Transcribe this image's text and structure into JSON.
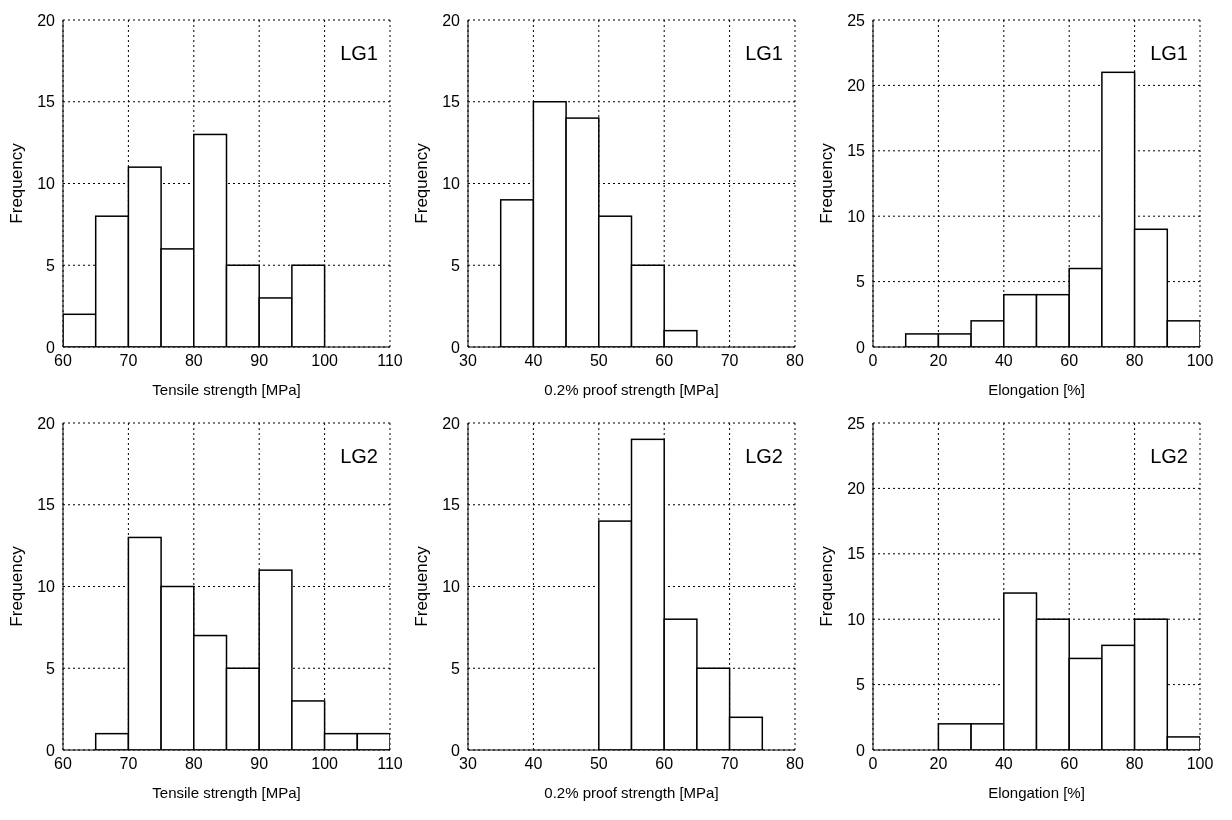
{
  "chart_data": [
    {
      "type": "histogram",
      "bins": [
        60,
        65,
        70,
        75,
        80,
        85,
        90,
        95,
        100
      ],
      "values": [
        2,
        8,
        11,
        6,
        13,
        5,
        3,
        5
      ],
      "color": "#ffffff",
      "xlim": [
        60,
        110
      ],
      "xticks": [
        60,
        70,
        80,
        90,
        100,
        110
      ],
      "ylim": [
        0,
        20
      ],
      "yticks": [
        0,
        5,
        10,
        15,
        20
      ],
      "xlabel": "Tensile strength  [MPa]",
      "ylabel": "Frequency",
      "annotations": [
        "LG1"
      ],
      "grid": true
    },
    {
      "type": "histogram",
      "bins": [
        35,
        40,
        45,
        50,
        55,
        60,
        65
      ],
      "values": [
        9,
        15,
        14,
        8,
        5,
        1
      ],
      "color": "#ffffff",
      "xlim": [
        30,
        80
      ],
      "xticks": [
        30,
        40,
        50,
        60,
        70,
        80
      ],
      "ylim": [
        0,
        20
      ],
      "yticks": [
        0,
        5,
        10,
        15,
        20
      ],
      "xlabel": "0.2% proof strength  [MPa]",
      "ylabel": "Frequency",
      "annotations": [
        "LG1"
      ],
      "grid": true
    },
    {
      "type": "histogram",
      "bins": [
        10,
        20,
        30,
        40,
        50,
        60,
        70,
        80,
        90,
        100
      ],
      "values": [
        1,
        1,
        2,
        4,
        4,
        6,
        21,
        9,
        2
      ],
      "color": "#ffffff",
      "xlim": [
        0,
        100
      ],
      "xticks": [
        0,
        20,
        40,
        60,
        80,
        100
      ],
      "ylim": [
        0,
        25
      ],
      "yticks": [
        0,
        5,
        10,
        15,
        20,
        25
      ],
      "xlabel": "Elongation  [%]",
      "ylabel": "Frequency",
      "annotations": [
        "LG1"
      ],
      "grid": true
    },
    {
      "type": "histogram",
      "bins": [
        65,
        70,
        75,
        80,
        85,
        90,
        95,
        100,
        105,
        110
      ],
      "values": [
        1,
        13,
        10,
        7,
        5,
        11,
        3,
        1,
        1
      ],
      "color": "#ffffff",
      "xlim": [
        60,
        110
      ],
      "xticks": [
        60,
        70,
        80,
        90,
        100,
        110
      ],
      "ylim": [
        0,
        20
      ],
      "yticks": [
        0,
        5,
        10,
        15,
        20
      ],
      "xlabel": "Tensile strength  [MPa]",
      "ylabel": "Frequency",
      "annotations": [
        "LG2"
      ],
      "grid": true
    },
    {
      "type": "histogram",
      "bins": [
        50,
        55,
        60,
        65,
        70,
        75
      ],
      "values": [
        14,
        19,
        8,
        5,
        2
      ],
      "color": "#ffffff",
      "xlim": [
        30,
        80
      ],
      "xticks": [
        30,
        40,
        50,
        60,
        70,
        80
      ],
      "ylim": [
        0,
        20
      ],
      "yticks": [
        0,
        5,
        10,
        15,
        20
      ],
      "xlabel": "0.2% proof strength  [MPa]",
      "ylabel": "Frequency",
      "annotations": [
        "LG2"
      ],
      "grid": true
    },
    {
      "type": "histogram",
      "bins": [
        20,
        30,
        40,
        50,
        60,
        70,
        80,
        90,
        100
      ],
      "values": [
        2,
        2,
        12,
        10,
        7,
        8,
        10,
        1
      ],
      "color": "#ffffff",
      "xlim": [
        0,
        100
      ],
      "xticks": [
        0,
        20,
        40,
        60,
        80,
        100
      ],
      "ylim": [
        0,
        25
      ],
      "yticks": [
        0,
        5,
        10,
        15,
        20,
        25
      ],
      "xlabel": "Elongation  [%]",
      "ylabel": "Frequency",
      "annotations": [
        "LG2"
      ],
      "grid": true
    }
  ]
}
